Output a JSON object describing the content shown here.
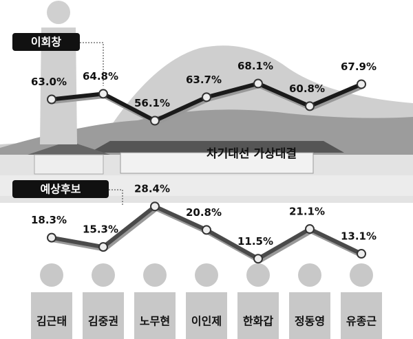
{
  "chart_data": {
    "type": "line",
    "title": "차기대선 가상대결",
    "categories": [
      "김근태",
      "김중권",
      "노무현",
      "이인제",
      "한화갑",
      "정동영",
      "유종근"
    ],
    "series": [
      {
        "name": "이회창",
        "color": "#1a1a1a",
        "values": [
          63.0,
          64.8,
          56.1,
          63.7,
          68.1,
          60.8,
          67.9
        ],
        "value_labels": [
          "63.0%",
          "64.8%",
          "56.1%",
          "63.7%",
          "68.1%",
          "60.8%",
          "67.9%"
        ]
      },
      {
        "name": "예상후보",
        "color": "#4a4a4a",
        "values": [
          18.3,
          15.3,
          28.4,
          20.8,
          11.5,
          21.1,
          13.1
        ],
        "value_labels": [
          "18.3%",
          "15.3%",
          "28.4%",
          "20.8%",
          "11.5%",
          "21.1%",
          "13.1%"
        ]
      }
    ],
    "ylim": [
      0,
      80
    ]
  }
}
